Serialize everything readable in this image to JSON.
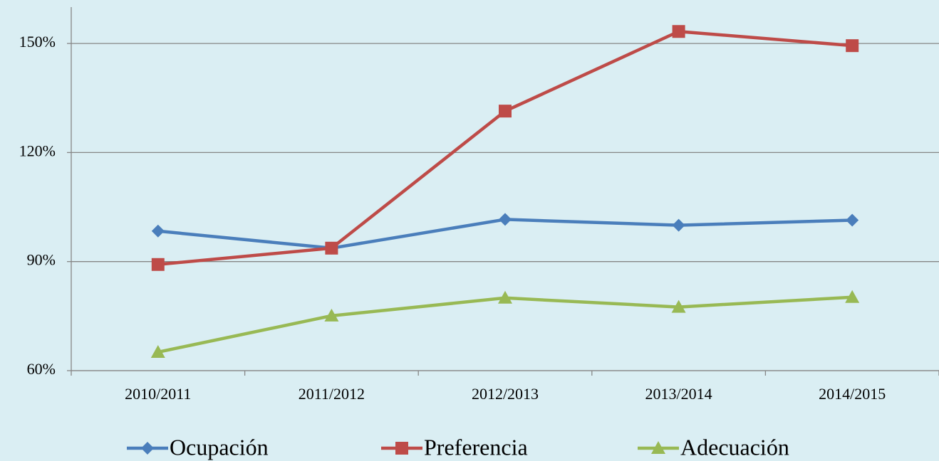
{
  "chart_data": {
    "type": "line",
    "categories": [
      "2010/2011",
      "2011/2012",
      "2012/2013",
      "2013/2014",
      "2014/2015"
    ],
    "series": [
      {
        "name": "Ocupación",
        "color": "#4a7ebb",
        "marker": "diamond",
        "values": [
          98.4,
          93.7,
          101.6,
          100.0,
          101.4
        ]
      },
      {
        "name": "Preferencia",
        "color": "#be4b48",
        "marker": "square",
        "values": [
          89.2,
          93.7,
          131.4,
          153.3,
          149.4
        ]
      },
      {
        "name": "Adecuación",
        "color": "#98b954",
        "marker": "triangle",
        "values": [
          65.1,
          75.1,
          80.0,
          77.5,
          80.2
        ]
      }
    ],
    "ylim": [
      60,
      160
    ],
    "yticks": [
      {
        "value": 60,
        "label": "60%"
      },
      {
        "value": 90,
        "label": "90%"
      },
      {
        "value": 120,
        "label": "120%"
      },
      {
        "value": 150,
        "label": "150%"
      }
    ],
    "grid": true,
    "legend": "bottom"
  }
}
